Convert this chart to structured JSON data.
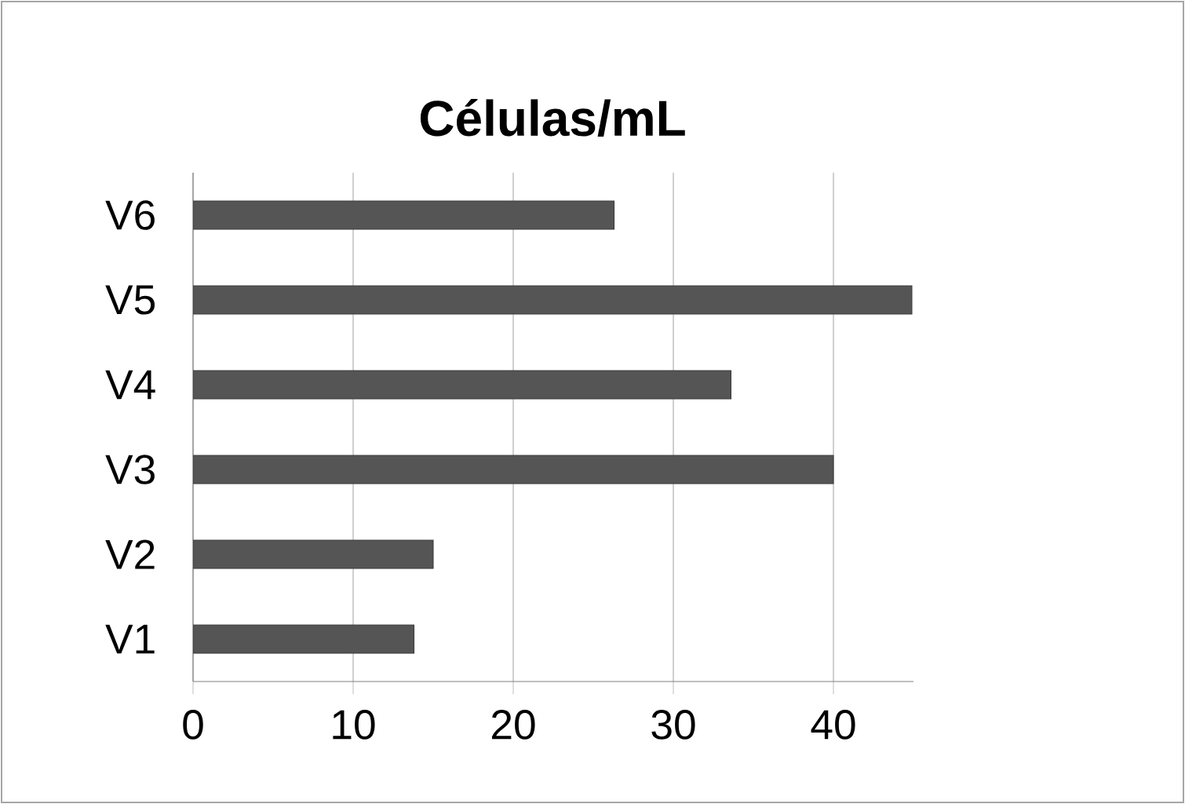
{
  "chart_data": {
    "type": "bar",
    "orientation": "horizontal",
    "title": "Células/mL",
    "categories": [
      "V6",
      "V5",
      "V4",
      "V3",
      "V2",
      "V1"
    ],
    "values": [
      26.3,
      44.9,
      33.6,
      40,
      15,
      13.8
    ],
    "color": "#555555",
    "xlim": [
      0,
      45
    ],
    "xticks": [
      0,
      10,
      20,
      30,
      40
    ],
    "grid": "x"
  }
}
